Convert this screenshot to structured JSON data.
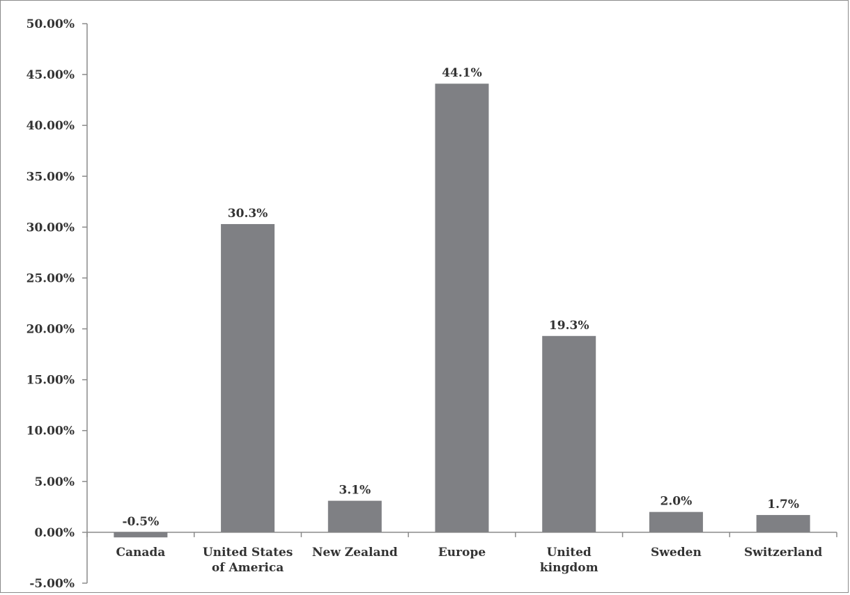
{
  "chart_data": {
    "type": "bar",
    "title": "",
    "xlabel": "",
    "ylabel": "",
    "categories": [
      [
        "Canada"
      ],
      [
        "United States",
        "of America"
      ],
      [
        "New Zealand"
      ],
      [
        "Europe"
      ],
      [
        "United",
        "kingdom"
      ],
      [
        "Sweden"
      ],
      [
        "Switzerland"
      ]
    ],
    "values": [
      -0.5,
      30.3,
      3.1,
      44.1,
      19.3,
      2.0,
      1.7
    ],
    "data_labels": [
      "-0.5%",
      "30.3%",
      "3.1%",
      "44.1%",
      "19.3%",
      "2.0%",
      "1.7%"
    ],
    "ylim": [
      -5,
      50
    ],
    "yticks": [
      -5,
      0,
      5,
      10,
      15,
      20,
      25,
      30,
      35,
      40,
      45,
      50
    ],
    "ytick_labels": [
      "-5.00%",
      "0.00%",
      "5.00%",
      "10.00%",
      "15.00%",
      "20.00%",
      "25.00%",
      "30.00%",
      "35.00%",
      "40.00%",
      "45.00%",
      "50.00%"
    ],
    "grid": false,
    "legend": "none",
    "bar_color": "#7f8084",
    "axis_color": "#8a8a8a"
  }
}
